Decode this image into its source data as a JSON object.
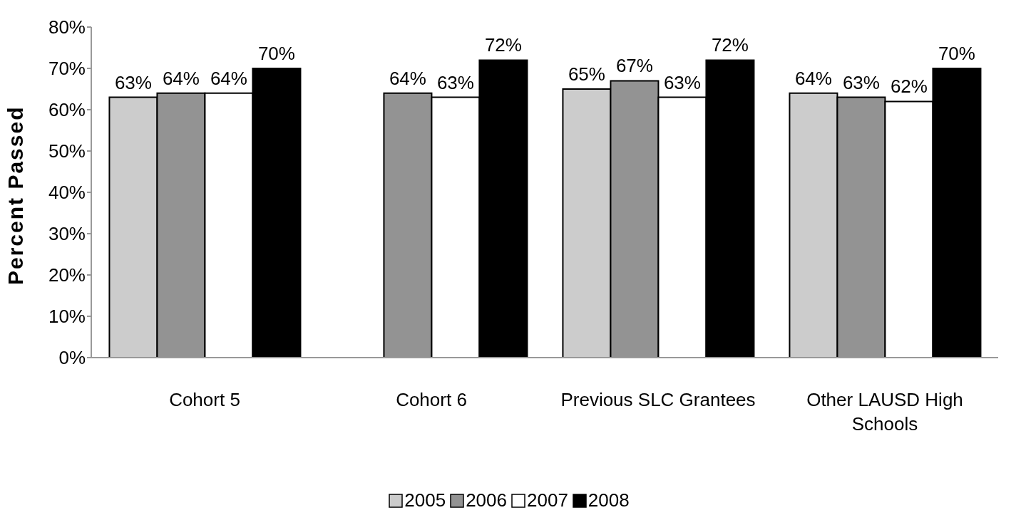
{
  "chart_data": {
    "type": "bar",
    "ylabel": "Percent Passed",
    "categories": [
      "Cohort 5",
      "Cohort 6",
      "Previous SLC Grantees",
      "Other LAUSD High Schools"
    ],
    "series": [
      {
        "name": "2005",
        "color": "#cccccc",
        "values": [
          63,
          null,
          65,
          64
        ],
        "value_labels": [
          "63%",
          null,
          "65%",
          "64%"
        ]
      },
      {
        "name": "2006",
        "color": "#939393",
        "values": [
          64,
          64,
          67,
          63
        ],
        "value_labels": [
          "64%",
          "64%",
          "67%",
          "63%"
        ]
      },
      {
        "name": "2007",
        "color": "#ffffff",
        "values": [
          64,
          63,
          63,
          62
        ],
        "value_labels": [
          "64%",
          "63%",
          "63%",
          "62%"
        ]
      },
      {
        "name": "2008",
        "color": "#000000",
        "values": [
          70,
          72,
          72,
          70
        ],
        "value_labels": [
          "70%",
          "72%",
          "72%",
          "70%"
        ]
      }
    ],
    "ylim": [
      0,
      80
    ],
    "yticks": [
      {
        "value": 0,
        "label": "0%"
      },
      {
        "value": 10,
        "label": "10%"
      },
      {
        "value": 20,
        "label": "20%"
      },
      {
        "value": 30,
        "label": "30%"
      },
      {
        "value": 40,
        "label": "40%"
      },
      {
        "value": 50,
        "label": "50%"
      },
      {
        "value": 60,
        "label": "60%"
      },
      {
        "value": 70,
        "label": "70%"
      },
      {
        "value": 80,
        "label": "80%"
      }
    ],
    "grid": false,
    "legend": "bottom"
  }
}
